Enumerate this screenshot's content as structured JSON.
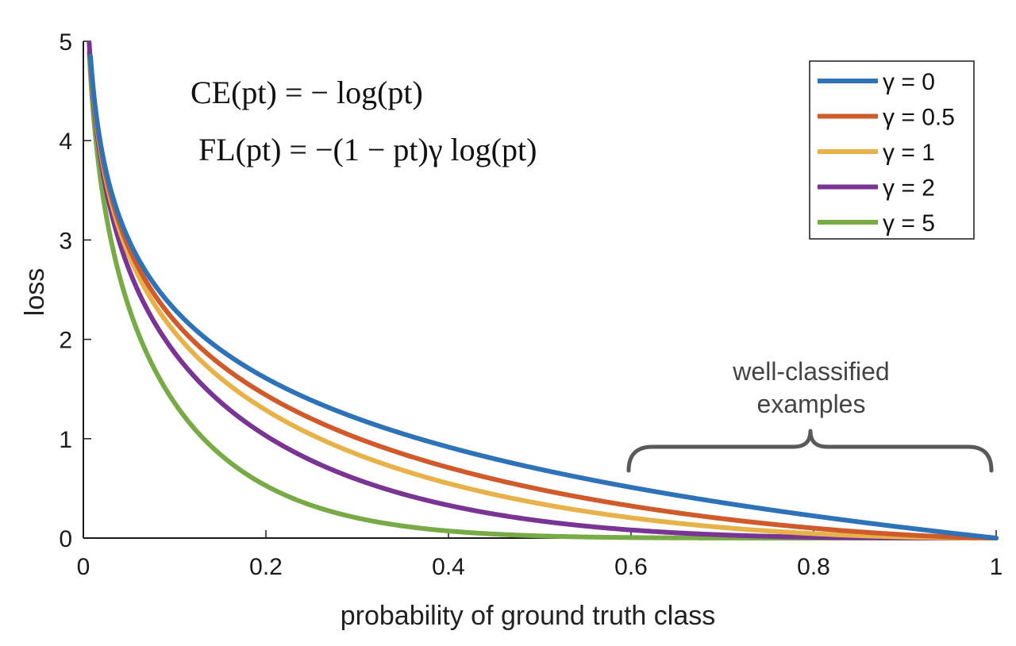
{
  "chart_data": {
    "type": "line",
    "title": "",
    "xlabel": "probability of ground truth class",
    "ylabel": "loss",
    "xlim": [
      0,
      1
    ],
    "ylim": [
      0,
      5
    ],
    "xticks": [
      0,
      0.2,
      0.4,
      0.6,
      0.8,
      1
    ],
    "yticks": [
      0,
      1,
      2,
      3,
      4,
      5
    ],
    "xtick_labels": [
      "0",
      "0.2",
      "0.4",
      "0.6",
      "0.8",
      "1"
    ],
    "ytick_labels": [
      "0",
      "1",
      "2",
      "3",
      "4",
      "5"
    ],
    "legend_position": "top-right",
    "formulas": {
      "ce": "CE(pt) = − log(pt)",
      "fl": "FL(pt) = −(1 − pt)γ log(pt)"
    },
    "annotation": {
      "line1": "well-classified",
      "line2": "examples",
      "x_range": [
        0.6,
        1
      ]
    },
    "series": [
      {
        "name": "γ = 0",
        "gamma": 0,
        "color": "#2e73b8",
        "x": [
          0.01,
          0.05,
          0.1,
          0.2,
          0.3,
          0.4,
          0.5,
          0.6,
          0.7,
          0.8,
          0.9,
          1.0
        ],
        "y": [
          4.61,
          3.0,
          2.3,
          1.61,
          1.2,
          0.92,
          0.69,
          0.51,
          0.36,
          0.22,
          0.11,
          0.0
        ]
      },
      {
        "name": "γ = 0.5",
        "gamma": 0.5,
        "color": "#d05a2a",
        "x": [
          0.01,
          0.05,
          0.1,
          0.2,
          0.3,
          0.4,
          0.5,
          0.6,
          0.7,
          0.8,
          0.9,
          1.0
        ],
        "y": [
          4.58,
          2.92,
          2.18,
          1.44,
          1.0,
          0.71,
          0.49,
          0.32,
          0.2,
          0.1,
          0.03,
          0.0
        ]
      },
      {
        "name": "γ = 1",
        "gamma": 1,
        "color": "#e8b24a",
        "x": [
          0.01,
          0.05,
          0.1,
          0.2,
          0.3,
          0.4,
          0.5,
          0.6,
          0.7,
          0.8,
          0.9,
          1.0
        ],
        "y": [
          4.56,
          2.85,
          2.07,
          1.29,
          0.84,
          0.55,
          0.35,
          0.2,
          0.11,
          0.04,
          0.01,
          0.0
        ]
      },
      {
        "name": "γ = 2",
        "gamma": 2,
        "color": "#7a3594",
        "x": [
          0.01,
          0.05,
          0.1,
          0.2,
          0.3,
          0.4,
          0.5,
          0.6,
          0.7,
          0.8,
          0.9,
          1.0
        ],
        "y": [
          4.51,
          2.7,
          1.86,
          1.03,
          0.59,
          0.33,
          0.17,
          0.08,
          0.03,
          0.01,
          0.0,
          0.0
        ]
      },
      {
        "name": "γ = 5",
        "gamma": 5,
        "color": "#78ab46",
        "x": [
          0.01,
          0.05,
          0.1,
          0.2,
          0.3,
          0.4,
          0.5,
          0.6,
          0.7,
          0.8,
          0.9,
          1.0
        ],
        "y": [
          4.38,
          2.32,
          1.36,
          0.53,
          0.2,
          0.07,
          0.02,
          0.01,
          0.0,
          0.0,
          0.0,
          0.0
        ]
      }
    ]
  }
}
